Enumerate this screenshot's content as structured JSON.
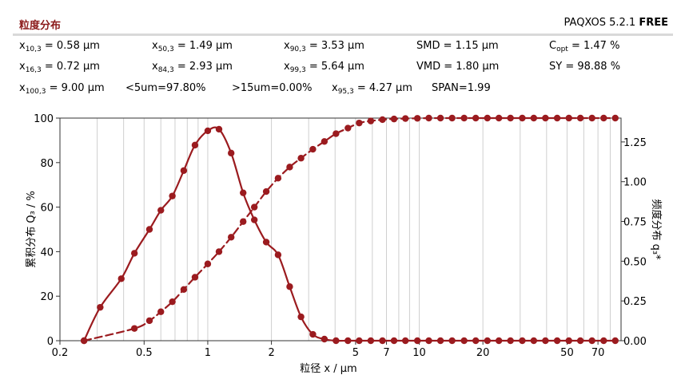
{
  "header": {
    "title": "粒度分布",
    "software": "PAQXOS 5.2.1",
    "edition": "FREE"
  },
  "stats": [
    {
      "label_main": "x",
      "label_sub": "10,3",
      "value": " = 0.58 µm"
    },
    {
      "label_main": "x",
      "label_sub": "50,3",
      "value": " = 1.49 µm"
    },
    {
      "label_main": "x",
      "label_sub": "90,3",
      "value": " = 3.53 µm"
    },
    {
      "label_main": "SMD",
      "label_sub": "",
      "value": " = 1.15 µm"
    },
    {
      "label_main": "C",
      "label_sub": "opt",
      "value": " = 1.47 %"
    },
    {
      "label_main": "x",
      "label_sub": "16,3",
      "value": " = 0.72 µm"
    },
    {
      "label_main": "x",
      "label_sub": "84,3",
      "value": " = 2.93 µm"
    },
    {
      "label_main": "x",
      "label_sub": "99,3",
      "value": " = 5.64 µm"
    },
    {
      "label_main": "VMD",
      "label_sub": "",
      "value": " = 1.80 µm"
    },
    {
      "label_main": "SY",
      "label_sub": "",
      "value": " = 98.88 %"
    },
    {
      "label_main": "x",
      "label_sub": "100,3",
      "value": " = 9.00 µm"
    },
    {
      "label_main": "<5um=97.80%",
      "label_sub": "",
      "value": ""
    },
    {
      "label_main": ">15um=0.00%",
      "label_sub": "",
      "value": ""
    },
    {
      "label_main": "x",
      "label_sub": "95,3",
      "value": " = 4.27 µm"
    },
    {
      "label_main": "SPAN=1.99",
      "label_sub": "",
      "value": ""
    }
  ],
  "chart_data": {
    "type": "line",
    "xlabel": "粒径 x / µm",
    "ylabel": "累积分布 Q₃ / %",
    "y2label": "频度分布 q₃*",
    "xscale": "log",
    "xlim": [
      0.2,
      90
    ],
    "ylim": [
      0,
      100
    ],
    "y2lim": [
      0,
      1.4
    ],
    "x_tick_labels": [
      "0.2",
      "0.5",
      "1",
      "2",
      "5",
      "7",
      "10",
      "20",
      "50",
      "70"
    ],
    "x_tick_values": [
      0.2,
      0.5,
      1,
      2,
      5,
      7,
      10,
      20,
      50,
      70
    ],
    "y_tick_labels": [
      "0",
      "20",
      "40",
      "60",
      "80",
      "100"
    ],
    "y_tick_values": [
      0,
      20,
      40,
      60,
      80,
      100
    ],
    "y2_tick_labels": [
      "0.00",
      "0.25",
      "0.50",
      "0.75",
      "1.00",
      "1.25"
    ],
    "y2_tick_values": [
      0,
      0.25,
      0.5,
      0.75,
      1.0,
      1.25
    ],
    "grid": "vertical",
    "series_color": "#9b1b1f",
    "series": [
      {
        "axis": "left",
        "x": [
          0.26,
          0.45,
          0.53,
          0.6,
          0.68,
          0.77,
          0.87,
          1.0,
          1.13,
          1.29,
          1.47,
          1.66,
          1.89,
          2.15,
          2.44,
          2.76,
          3.14,
          3.56,
          4.04,
          4.6,
          5.2,
          5.9,
          6.7,
          7.6,
          8.6,
          9.8,
          11.1,
          12.6,
          14.3,
          16.3,
          18.5,
          21.0,
          23.8,
          27.0,
          30.7,
          34.8,
          39.5,
          44.9,
          51.0,
          57.8,
          65.6,
          74.5,
          84.5
        ],
        "values": [
          0,
          5.5,
          9.0,
          13.0,
          17.5,
          23.0,
          28.5,
          34.5,
          40.0,
          46.5,
          53.5,
          60.0,
          67.0,
          73.0,
          78.0,
          82.0,
          86.0,
          89.5,
          93.0,
          95.5,
          97.8,
          98.7,
          99.3,
          99.6,
          99.8,
          99.9,
          100,
          100,
          100,
          100,
          100,
          100,
          100,
          100,
          100,
          100,
          100,
          100,
          100,
          100,
          100,
          100,
          100
        ]
      },
      {
        "axis": "right",
        "x": [
          0.26,
          0.31,
          0.39,
          0.45,
          0.53,
          0.6,
          0.68,
          0.77,
          0.87,
          1.0,
          1.13,
          1.29,
          1.47,
          1.66,
          1.89,
          2.15,
          2.44,
          2.76,
          3.14,
          3.56,
          4.04,
          4.6,
          5.2,
          5.9,
          6.7,
          7.6,
          8.6,
          9.8,
          11.1,
          12.6,
          14.3,
          16.3,
          18.5,
          21.0,
          23.8,
          27.0,
          30.7,
          34.8,
          39.5,
          44.9,
          51.0,
          57.8,
          65.6,
          74.5,
          84.5
        ],
        "values": [
          0,
          0.21,
          0.39,
          0.55,
          0.7,
          0.82,
          0.91,
          1.07,
          1.23,
          1.32,
          1.33,
          1.18,
          0.93,
          0.76,
          0.62,
          0.54,
          0.34,
          0.15,
          0.04,
          0.01,
          0,
          0,
          0,
          0,
          0,
          0,
          0,
          0,
          0,
          0,
          0,
          0,
          0,
          0,
          0,
          0,
          0,
          0,
          0,
          0,
          0,
          0,
          0,
          0,
          0
        ]
      }
    ]
  }
}
